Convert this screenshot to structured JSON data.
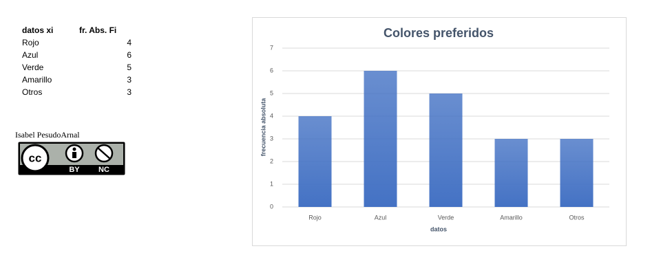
{
  "table": {
    "header": [
      "datos xi",
      "fr. Abs. Fi"
    ],
    "rows": [
      [
        "Rojo",
        "4"
      ],
      [
        "Azul",
        "6"
      ],
      [
        "Verde",
        "5"
      ],
      [
        "Amarillo",
        "3"
      ],
      [
        "Otros",
        "3"
      ]
    ]
  },
  "author": "Isabel PesudoArnal",
  "badge": {
    "main": "cc",
    "labels": [
      "BY",
      "NC"
    ]
  },
  "chart_data": {
    "type": "bar",
    "title": "Colores preferidos",
    "x_label": "datos",
    "y_label": "frecuencia absoluta",
    "categories": [
      "Rojo",
      "Azul",
      "Verde",
      "Amarillo",
      "Otros"
    ],
    "values": [
      4,
      6,
      5,
      3,
      3
    ],
    "color": "#4472c4",
    "ylim": [
      0,
      7
    ],
    "yticks": [
      0,
      1,
      2,
      3,
      4,
      5,
      6,
      7
    ],
    "grid": true
  }
}
